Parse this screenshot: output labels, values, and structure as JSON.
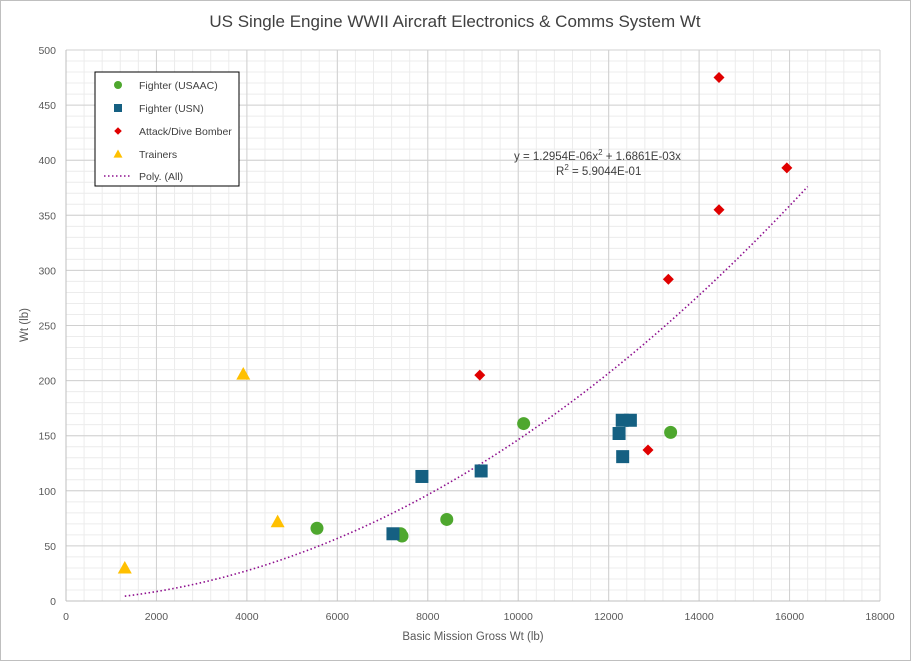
{
  "chart_data": {
    "type": "scatter",
    "title": "US Single Engine WWII Aircraft Electronics & Comms System Wt",
    "xlabel": "Basic Mission Gross Wt (lb)",
    "ylabel": "Wt (lb)",
    "xlim": [
      0,
      18000
    ],
    "ylim": [
      0,
      500
    ],
    "x_ticks": [
      0,
      2000,
      4000,
      6000,
      8000,
      10000,
      12000,
      14000,
      16000,
      18000
    ],
    "y_ticks": [
      0,
      50,
      100,
      150,
      200,
      250,
      300,
      350,
      400,
      450,
      500
    ],
    "grid": true,
    "legend_position": "top-left",
    "series": [
      {
        "name": "Fighter (USAAC)",
        "marker": "circle",
        "color": "#4ea72e",
        "points": [
          {
            "x": 5550,
            "y": 66
          },
          {
            "x": 7400,
            "y": 61
          },
          {
            "x": 7430,
            "y": 59
          },
          {
            "x": 8420,
            "y": 74
          },
          {
            "x": 10120,
            "y": 161
          },
          {
            "x": 13370,
            "y": 153
          }
        ]
      },
      {
        "name": "Fighter (USN)",
        "marker": "square",
        "color": "#156082",
        "points": [
          {
            "x": 7230,
            "y": 61
          },
          {
            "x": 7870,
            "y": 113
          },
          {
            "x": 9180,
            "y": 118
          },
          {
            "x": 12230,
            "y": 152
          },
          {
            "x": 12300,
            "y": 164
          },
          {
            "x": 12310,
            "y": 131
          },
          {
            "x": 12480,
            "y": 164
          }
        ]
      },
      {
        "name": "Attack/Dive Bomber",
        "marker": "diamond",
        "color": "#e00000",
        "points": [
          {
            "x": 9150,
            "y": 205
          },
          {
            "x": 12870,
            "y": 137
          },
          {
            "x": 13320,
            "y": 292
          },
          {
            "x": 14440,
            "y": 355
          },
          {
            "x": 14440,
            "y": 475
          },
          {
            "x": 15940,
            "y": 393
          }
        ]
      },
      {
        "name": "Trainers",
        "marker": "triangle",
        "color": "#ffc000",
        "points": [
          {
            "x": 1300,
            "y": 30
          },
          {
            "x": 3920,
            "y": 206
          },
          {
            "x": 4680,
            "y": 72
          }
        ]
      }
    ],
    "trendline": {
      "name": "Poly. (All)",
      "type": "polynomial",
      "color": "#8e0f8e",
      "a2": 1.2954e-06,
      "a1": 0.0016861,
      "x_range": [
        1300,
        16400
      ],
      "equation_prefix": "y = 1.2954E-06x",
      "equation_exp": "2",
      "equation_suffix": " + 1.6861E-03x",
      "r2_prefix": "R",
      "r2_exp": "2",
      "r2_suffix": " = 5.9044E-01"
    }
  }
}
